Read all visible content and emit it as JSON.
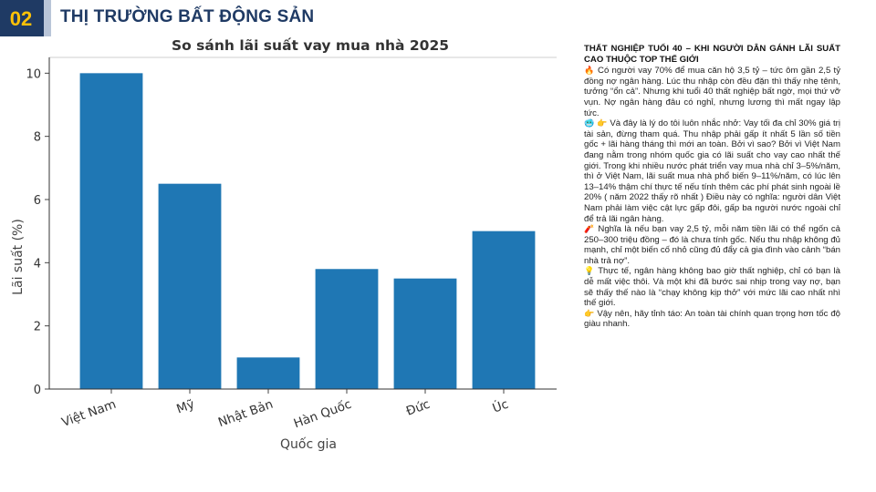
{
  "header": {
    "section_number": "02",
    "title": "THỊ TRƯỜNG BẤT ĐỘNG SẢN"
  },
  "chart_data": {
    "type": "bar",
    "title": "So sánh lãi suất vay mua nhà 2025",
    "xlabel": "Quốc gia",
    "ylabel": "Lãi suất (%)",
    "categories": [
      "Việt Nam",
      "Mỹ",
      "Nhật Bản",
      "Hàn Quốc",
      "Đức",
      "Úc"
    ],
    "values": [
      10,
      6.5,
      1,
      3.8,
      3.5,
      5
    ],
    "ylim": [
      0,
      10.5
    ],
    "yticks": [
      0,
      2,
      4,
      6,
      8,
      10
    ],
    "bar_color": "#1f77b4",
    "grid": false
  },
  "article": {
    "heading": "THẤT NGHIỆP TUỔI 40 – KHI NGƯỜI DÂN GÁNH LÃI SUẤT CAO THUỘC TOP THẾ GIỚI",
    "paragraphs": [
      {
        "icon": "🔥",
        "text": "Có người vay 70% để mua căn hộ 3,5 tỷ – tức ôm gần 2,5 tỷ đồng nợ ngân hàng. Lúc thu nhập còn đều đặn thì thấy nhẹ tênh, tưởng “ổn cả”. Nhưng khi tuổi 40 thất nghiệp bất ngờ, mọi thứ vỡ vụn. Nợ ngân hàng đâu có nghỉ, nhưng lương thì mất ngay lập tức."
      },
      {
        "icon": "🥶 👉",
        "text": "Và đây là lý do tôi luôn nhắc nhở: Vay tối đa chỉ 30% giá trị tài sản, đừng tham quá. Thu nhập phải gấp ít nhất 5 lần số tiền gốc + lãi hàng tháng thì mới an toàn. Bởi vì sao? Bởi vì Việt Nam đang nằm trong nhóm quốc gia có lãi suất cho vay cao nhất thế giới. Trong khi nhiều nước phát triển vay mua nhà chỉ 3–5%/năm, thì ở Việt Nam, lãi suất mua nhà phổ biến 9–11%/năm, có lúc lên 13–14% thậm chí thực tế nếu tính thêm các phí phát sinh ngoài lề 20% ( năm 2022 thấy rõ nhất ) Điều này có nghĩa: người dân Việt Nam phải làm việc cật lực gấp đôi, gấp ba người nước ngoài chỉ để trả lãi ngân hàng."
      },
      {
        "icon": "🧨",
        "text": "Nghĩa là nếu bạn vay 2,5 tỷ, mỗi năm tiền lãi có thể ngốn cả 250–300 triệu đồng – đó là chưa tính gốc. Nếu thu nhập không đủ mạnh, chỉ một biến cố nhỏ cũng đủ đẩy cả gia đình vào cảnh “bán nhà trả nợ”."
      },
      {
        "icon": "💡",
        "text": "Thực tế, ngân hàng không bao giờ thất nghiệp, chỉ có bạn là dễ mất việc thôi. Và một khi đã bước sai nhịp trong vay nợ, bạn sẽ thấy thế nào là “chạy không kịp thở” với mức lãi cao nhất nhì thế giới."
      },
      {
        "icon": "👉",
        "text": "Vậy nên, hãy tỉnh táo: An toàn tài chính quan trọng hơn tốc độ giàu nhanh."
      }
    ]
  }
}
